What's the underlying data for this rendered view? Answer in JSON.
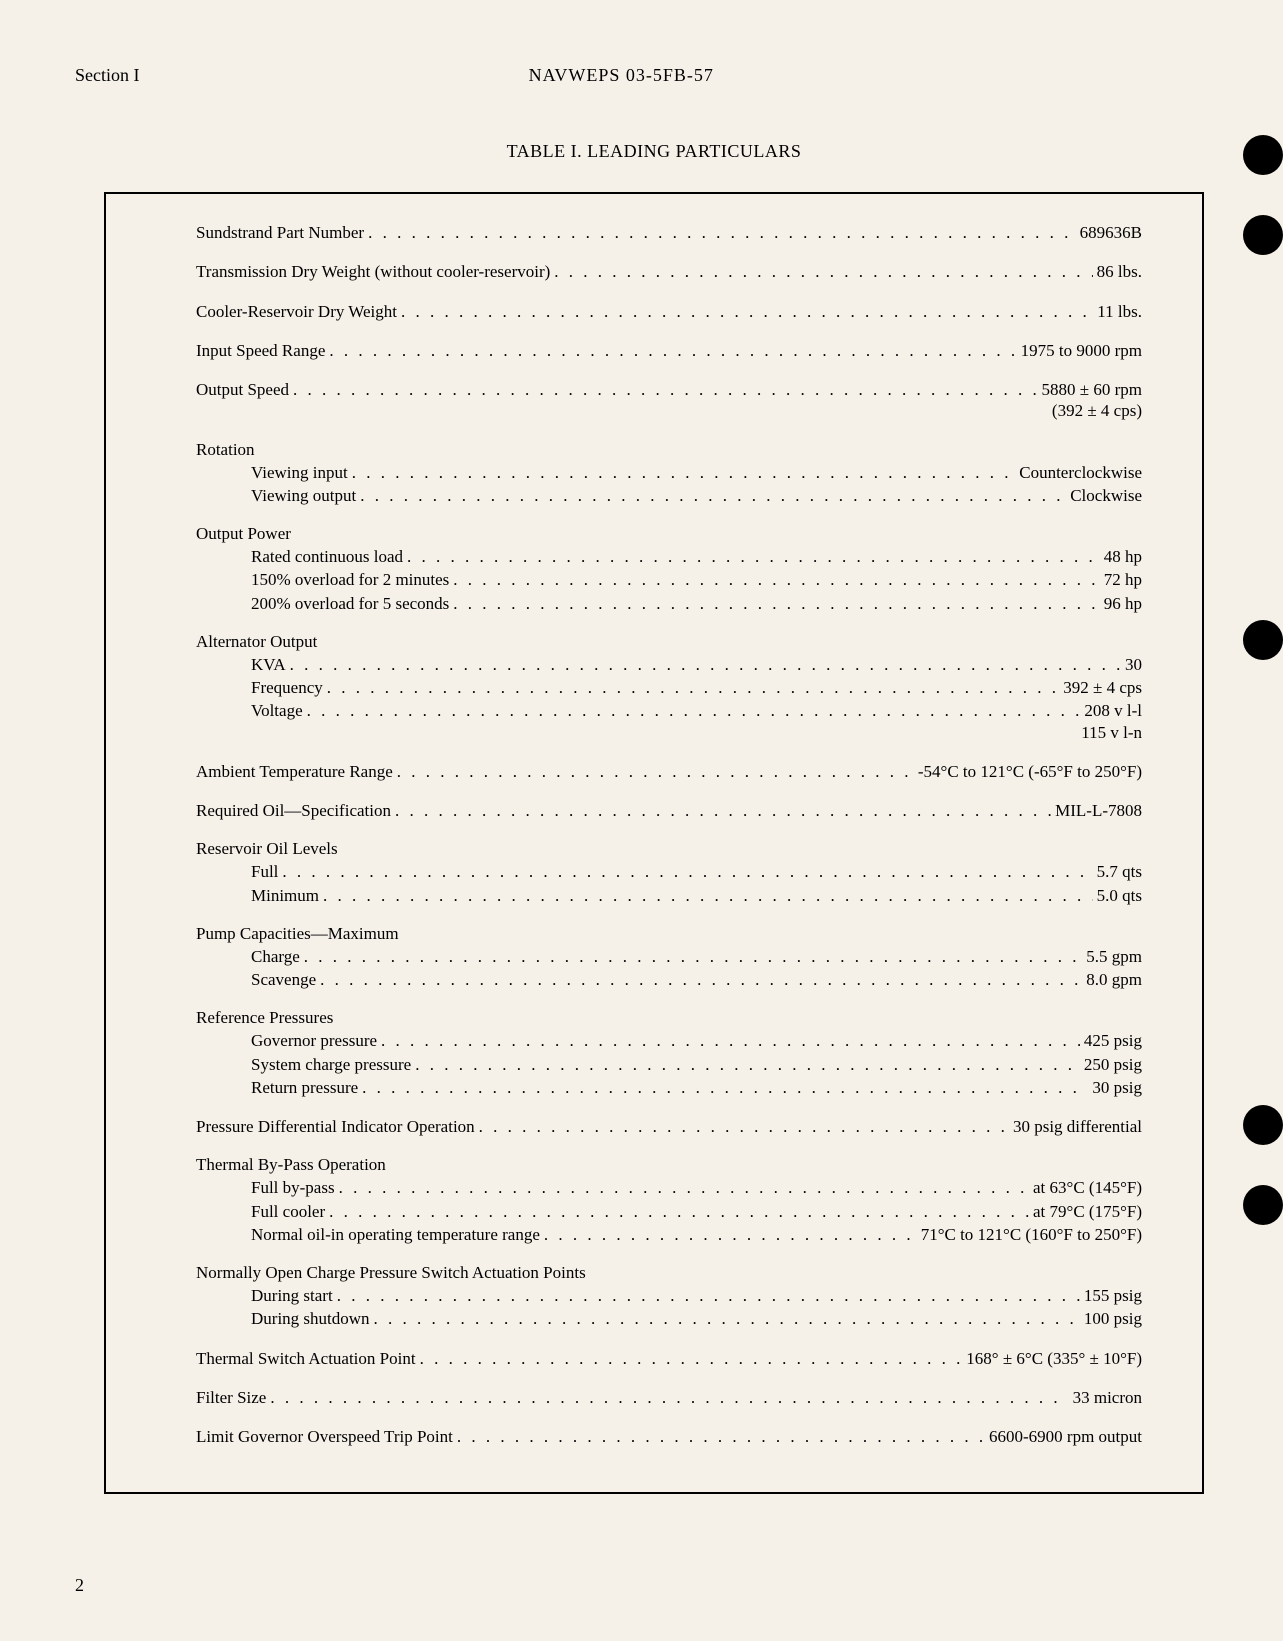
{
  "header": {
    "section": "Section I",
    "docId": "NAVWEPS 03-5FB-57"
  },
  "tableTitle": "TABLE I.  LEADING PARTICULARS",
  "specs": {
    "partNumber": {
      "label": "Sundstrand Part Number",
      "value": "689636B"
    },
    "dryWeight": {
      "label": "Transmission Dry Weight (without cooler-reservoir)",
      "value": "86 lbs."
    },
    "coolerWeight": {
      "label": "Cooler-Reservoir Dry Weight",
      "value": "11 lbs."
    },
    "inputSpeed": {
      "label": "Input Speed Range",
      "value": "1975 to 9000 rpm"
    },
    "outputSpeed": {
      "label": "Output Speed",
      "value": "5880 ± 60 rpm",
      "subvalue": "(392 ± 4 cps)"
    },
    "rotation": {
      "header": "Rotation",
      "viewingInput": {
        "label": "Viewing input",
        "value": "Counterclockwise"
      },
      "viewingOutput": {
        "label": "Viewing output",
        "value": "Clockwise"
      }
    },
    "outputPower": {
      "header": "Output Power",
      "rated": {
        "label": "Rated continuous load",
        "value": "48 hp"
      },
      "overload150": {
        "label": "150% overload for 2 minutes",
        "value": "72 hp"
      },
      "overload200": {
        "label": "200% overload for 5 seconds",
        "value": "96 hp"
      }
    },
    "alternator": {
      "header": "Alternator Output",
      "kva": {
        "label": "KVA",
        "value": "30"
      },
      "frequency": {
        "label": "Frequency",
        "value": "392 ± 4 cps"
      },
      "voltage": {
        "label": "Voltage",
        "value": "208 v l-l",
        "subvalue": "115 v l-n"
      }
    },
    "ambientTemp": {
      "label": "Ambient Temperature Range",
      "value": "-54°C to 121°C (-65°F to 250°F)"
    },
    "oilSpec": {
      "label": "Required Oil—Specification",
      "value": "MIL-L-7808"
    },
    "oilLevels": {
      "header": "Reservoir Oil Levels",
      "full": {
        "label": "Full",
        "value": "5.7 qts"
      },
      "minimum": {
        "label": "Minimum",
        "value": "5.0 qts"
      }
    },
    "pumpCapacities": {
      "header": "Pump Capacities—Maximum",
      "charge": {
        "label": "Charge",
        "value": "5.5 gpm"
      },
      "scavenge": {
        "label": "Scavenge",
        "value": "8.0 gpm"
      }
    },
    "refPressures": {
      "header": "Reference Pressures",
      "governor": {
        "label": "Governor pressure",
        "value": "425 psig"
      },
      "system": {
        "label": "System charge pressure",
        "value": "250 psig"
      },
      "return": {
        "label": "Return pressure",
        "value": "30 psig"
      }
    },
    "pressureDiff": {
      "label": "Pressure Differential Indicator Operation",
      "value": "30 psig differential"
    },
    "thermalBypass": {
      "header": "Thermal By-Pass Operation",
      "fullBypass": {
        "label": "Full by-pass",
        "value": "at 63°C (145°F)"
      },
      "fullCooler": {
        "label": "Full cooler",
        "value": "at 79°C (175°F)"
      },
      "normalRange": {
        "label": "Normal oil-in operating temperature range",
        "value": "71°C to 121°C (160°F to 250°F)"
      }
    },
    "chargePressure": {
      "header": "Normally Open Charge Pressure Switch Actuation Points",
      "duringStart": {
        "label": "During start",
        "value": "155 psig"
      },
      "duringShutdown": {
        "label": "During shutdown",
        "value": "100 psig"
      }
    },
    "thermalSwitch": {
      "label": "Thermal Switch Actuation Point",
      "value": "168° ± 6°C (335° ± 10°F)"
    },
    "filterSize": {
      "label": "Filter Size",
      "value": "33 micron"
    },
    "governorTrip": {
      "label": "Limit Governor Overspeed Trip Point",
      "value": "6600-6900 rpm output"
    }
  },
  "pageNumber": "2"
}
